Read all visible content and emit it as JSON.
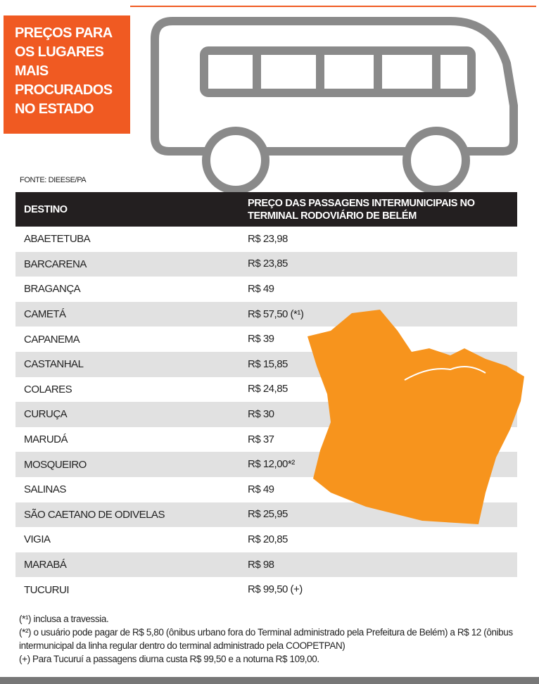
{
  "header": {
    "title_lines": [
      "PREÇOS PARA",
      "OS LUGARES",
      "MAIS",
      "PROCURADOS",
      "NO ESTADO"
    ],
    "source": "FONTE: DIEESE/PA"
  },
  "table": {
    "columns": [
      "DESTINO",
      "PREÇO DAS PASSAGENS INTERMUNICIPAIS NO TERMINAL RODOVIÁRIO DE BELÉM"
    ],
    "rows": [
      [
        "ABAETETUBA",
        "R$ 23,98"
      ],
      [
        "BARCARENA",
        "R$ 23,85"
      ],
      [
        "BRAGANÇA",
        "R$ 49"
      ],
      [
        "CAMETÁ",
        "R$ 57,50 (*¹)"
      ],
      [
        "CAPANEMA",
        "R$ 39"
      ],
      [
        "CASTANHAL",
        "R$ 15,85"
      ],
      [
        "COLARES",
        "R$ 24,85"
      ],
      [
        "CURUÇA",
        "R$ 30"
      ],
      [
        "MARUDÁ",
        "R$ 37"
      ],
      [
        "MOSQUEIRO",
        "R$ 12,00*²"
      ],
      [
        "SALINAS",
        "R$ 49"
      ],
      [
        "SÃO CAETANO DE ODIVELAS",
        "R$ 25,95"
      ],
      [
        "VIGIA",
        "R$ 20,85"
      ],
      [
        "MARABÁ",
        "R$ 98"
      ],
      [
        "TUCURUI",
        "R$ 99,50 (+)"
      ]
    ]
  },
  "notes": [
    "(*¹) inclusa a travessia.",
    "(*²) o usuário pode pagar de R$ 5,80 (ônibus urbano fora do Terminal administrado pela Prefeitura de Belém) a R$ 12 (ônibus intermunicipal da linha regular dentro do terminal administrado pela COOPETPAN)",
    "(+) Para Tucuruí a passagens diurna custa R$ 99,50 e a noturna R$ 109,00."
  ]
}
